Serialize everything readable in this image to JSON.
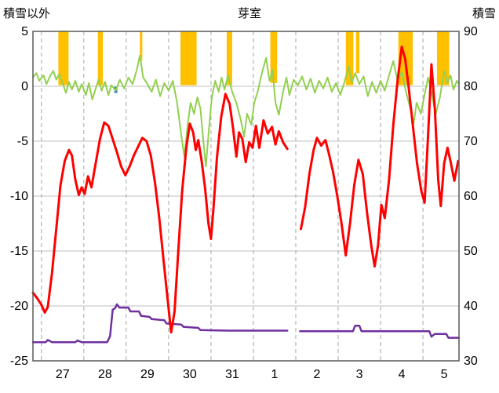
{
  "titles": {
    "left_axis_title": "積雪以外",
    "station_title": "芽室",
    "right_axis_title": "積雪"
  },
  "chart_data": {
    "type": "line",
    "title": "芽室",
    "left_axis_label": "積雪以外",
    "right_axis_label": "積雪",
    "x_domain": [
      -0.2,
      9.85
    ],
    "left_ylim": [
      -25,
      5
    ],
    "right_ylim": [
      30,
      90
    ],
    "left_ticks": [
      5,
      0,
      -5,
      -10,
      -15,
      -20,
      -25
    ],
    "right_ticks": [
      90,
      80,
      70,
      60,
      50,
      40,
      30
    ],
    "day_labels": [
      "27",
      "28",
      "29",
      "30",
      "31",
      "1",
      "2",
      "3",
      "4",
      "5"
    ],
    "day_boundaries": [
      0,
      1,
      2,
      3,
      4,
      5,
      6,
      7,
      8,
      9
    ],
    "grid": {
      "horizontal": true,
      "vertical_dashed": true
    },
    "legend": "none",
    "colors": {
      "temperature": "#FF0000",
      "near_zero_series": "#92D050",
      "snow_depth": "#7030A0",
      "sunshine_bar": "#FFC000",
      "precip_marker": "#2E75B6",
      "grid_h": "#BFBFBF",
      "grid_v": "#A6A6A6",
      "border": "#595959",
      "text": "#000000"
    },
    "bars": [
      {
        "t0": 0.4,
        "t1": 0.64,
        "from": 5,
        "to": 0.1,
        "color": "#FFC000",
        "name": "sunshine-bar"
      },
      {
        "t0": 1.33,
        "t1": 1.45,
        "from": 5,
        "to": 0.1,
        "color": "#FFC000",
        "name": "sunshine-bar"
      },
      {
        "t0": 1.72,
        "t1": 1.79,
        "from": -0.05,
        "to": -0.6,
        "color": "#2E75B6",
        "name": "precip-marker"
      },
      {
        "t0": 2.32,
        "t1": 2.38,
        "from": 5,
        "to": 2.3,
        "color": "#FFC000",
        "name": "sunshine-bar"
      },
      {
        "t0": 3.28,
        "t1": 3.66,
        "from": 5,
        "to": 0.1,
        "color": "#FFC000",
        "name": "sunshine-bar"
      },
      {
        "t0": 4.37,
        "t1": 4.5,
        "from": 5,
        "to": 0.1,
        "color": "#FFC000",
        "name": "sunshine-bar"
      },
      {
        "t0": 5.4,
        "t1": 5.56,
        "from": 5,
        "to": 0.3,
        "color": "#FFC000",
        "name": "sunshine-bar"
      },
      {
        "t0": 7.18,
        "t1": 7.36,
        "from": 5,
        "to": 0.1,
        "color": "#FFC000",
        "name": "sunshine-bar"
      },
      {
        "t0": 7.42,
        "t1": 7.5,
        "from": 5,
        "to": 1.2,
        "color": "#FFC000",
        "name": "sunshine-bar"
      },
      {
        "t0": 8.42,
        "t1": 8.76,
        "from": 5,
        "to": 0.1,
        "color": "#FFC000",
        "name": "sunshine-bar"
      },
      {
        "t0": 9.33,
        "t1": 9.62,
        "from": 5,
        "to": 0.1,
        "color": "#FFC000",
        "name": "sunshine-bar"
      }
    ],
    "series": [
      {
        "name": "snow-depth",
        "axis": "right",
        "color": "#7030A0",
        "width": 2.5,
        "points": [
          [
            -0.2,
            33.4
          ],
          [
            0.1,
            33.4
          ],
          [
            0.15,
            33.8
          ],
          [
            0.25,
            33.4
          ],
          [
            0.8,
            33.4
          ],
          [
            0.85,
            33.7
          ],
          [
            0.95,
            33.4
          ],
          [
            1.55,
            33.4
          ],
          [
            1.62,
            34.5
          ],
          [
            1.68,
            39.3
          ],
          [
            1.74,
            39.6
          ],
          [
            1.78,
            40.3
          ],
          [
            1.84,
            39.7
          ],
          [
            2.05,
            39.7
          ],
          [
            2.1,
            39.0
          ],
          [
            2.3,
            39.0
          ],
          [
            2.35,
            38.2
          ],
          [
            2.55,
            38.0
          ],
          [
            2.6,
            37.6
          ],
          [
            2.9,
            37.4
          ],
          [
            2.95,
            36.8
          ],
          [
            3.3,
            36.6
          ],
          [
            3.35,
            36.2
          ],
          [
            3.7,
            36.0
          ],
          [
            3.75,
            35.6
          ],
          [
            4.4,
            35.5
          ],
          [
            5.8,
            35.5
          ],
          null,
          [
            6.1,
            35.4
          ],
          [
            7.35,
            35.4
          ],
          [
            7.4,
            36.4
          ],
          [
            7.5,
            36.4
          ],
          [
            7.55,
            35.4
          ],
          [
            8.3,
            35.4
          ],
          [
            9.15,
            35.4
          ],
          [
            9.2,
            34.4
          ],
          [
            9.28,
            34.9
          ],
          [
            9.55,
            34.9
          ],
          [
            9.6,
            34.2
          ],
          [
            9.85,
            34.2
          ]
        ]
      },
      {
        "name": "near-zero",
        "axis": "left",
        "color": "#92D050",
        "width": 2,
        "points": [
          [
            -0.2,
            0.8
          ],
          [
            -0.12,
            1.2
          ],
          [
            -0.05,
            0.5
          ],
          [
            0.05,
            1.0
          ],
          [
            0.12,
            0.2
          ],
          [
            0.2,
            0.9
          ],
          [
            0.28,
            1.4
          ],
          [
            0.35,
            0.6
          ],
          [
            0.42,
            1.1
          ],
          [
            0.5,
            0.3
          ],
          [
            0.58,
            -0.6
          ],
          [
            0.65,
            0.4
          ],
          [
            0.72,
            -0.3
          ],
          [
            0.8,
            0.5
          ],
          [
            0.88,
            -0.5
          ],
          [
            0.95,
            0.2
          ],
          [
            1.05,
            -0.8
          ],
          [
            1.12,
            0.3
          ],
          [
            1.2,
            -1.2
          ],
          [
            1.28,
            -0.2
          ],
          [
            1.35,
            0.6
          ],
          [
            1.42,
            -0.4
          ],
          [
            1.5,
            0.4
          ],
          [
            1.58,
            -0.8
          ],
          [
            1.65,
            0.1
          ],
          [
            1.75,
            -0.4
          ],
          [
            1.85,
            0.6
          ],
          [
            1.95,
            -0.2
          ],
          [
            2.05,
            0.8
          ],
          [
            2.15,
            0.2
          ],
          [
            2.25,
            1.5
          ],
          [
            2.32,
            2.8
          ],
          [
            2.4,
            0.8
          ],
          [
            2.5,
            0.2
          ],
          [
            2.6,
            -0.5
          ],
          [
            2.7,
            0.6
          ],
          [
            2.8,
            -0.9
          ],
          [
            2.9,
            0.3
          ],
          [
            3.0,
            -0.4
          ],
          [
            3.1,
            0.5
          ],
          [
            3.2,
            -1.5
          ],
          [
            3.3,
            -4.5
          ],
          [
            3.37,
            -6.4
          ],
          [
            3.45,
            -3.5
          ],
          [
            3.52,
            -1.5
          ],
          [
            3.6,
            -2.5
          ],
          [
            3.68,
            -1.0
          ],
          [
            3.75,
            -2.0
          ],
          [
            3.82,
            -5.0
          ],
          [
            3.88,
            -7.3
          ],
          [
            3.95,
            -4.0
          ],
          [
            4.02,
            -1.0
          ],
          [
            4.1,
            0.5
          ],
          [
            4.18,
            -0.5
          ],
          [
            4.25,
            0.8
          ],
          [
            4.32,
            -0.3
          ],
          [
            4.4,
            1.0
          ],
          [
            4.5,
            -0.5
          ],
          [
            4.6,
            -1.5
          ],
          [
            4.7,
            -3.0
          ],
          [
            4.78,
            -4.6
          ],
          [
            4.85,
            -2.5
          ],
          [
            4.95,
            -3.5
          ],
          [
            5.02,
            -1.5
          ],
          [
            5.1,
            -0.5
          ],
          [
            5.2,
            1.2
          ],
          [
            5.3,
            2.6
          ],
          [
            5.38,
            0.5
          ],
          [
            5.45,
            1.5
          ],
          [
            5.52,
            -1.5
          ],
          [
            5.6,
            -2.6
          ],
          [
            5.7,
            -0.5
          ],
          [
            5.78,
            0.8
          ],
          [
            5.85,
            -0.8
          ],
          [
            5.95,
            0.6
          ],
          [
            6.05,
            0.1
          ],
          [
            6.15,
            0.9
          ],
          [
            6.25,
            -0.3
          ],
          [
            6.35,
            0.7
          ],
          [
            6.45,
            -0.6
          ],
          [
            6.55,
            0.5
          ],
          [
            6.65,
            -0.2
          ],
          [
            6.75,
            0.8
          ],
          [
            6.85,
            -0.5
          ],
          [
            6.95,
            0.3
          ],
          [
            7.05,
            -0.8
          ],
          [
            7.15,
            0.4
          ],
          [
            7.25,
            1.8
          ],
          [
            7.32,
            0.3
          ],
          [
            7.4,
            1.2
          ],
          [
            7.5,
            0.2
          ],
          [
            7.6,
            0.9
          ],
          [
            7.7,
            -0.9
          ],
          [
            7.8,
            0.4
          ],
          [
            7.9,
            -0.6
          ],
          [
            8.0,
            0.5
          ],
          [
            8.1,
            -0.4
          ],
          [
            8.2,
            1.0
          ],
          [
            8.3,
            2.3
          ],
          [
            8.4,
            0.5
          ],
          [
            8.5,
            1.3
          ],
          [
            8.6,
            -0.5
          ],
          [
            8.7,
            -2.0
          ],
          [
            8.78,
            -3.4
          ],
          [
            8.85,
            -1.5
          ],
          [
            8.95,
            -2.5
          ],
          [
            9.05,
            -0.5
          ],
          [
            9.12,
            0.8
          ],
          [
            9.2,
            -0.5
          ],
          [
            9.3,
            -2.6
          ],
          [
            9.4,
            -1.0
          ],
          [
            9.5,
            1.4
          ],
          [
            9.58,
            0.3
          ],
          [
            9.65,
            1.0
          ],
          [
            9.72,
            -0.3
          ],
          [
            9.8,
            0.5
          ],
          [
            9.85,
            0.2
          ]
        ]
      },
      {
        "name": "temperature",
        "axis": "left",
        "color": "#FF0000",
        "width": 3,
        "points": [
          [
            -0.2,
            -18.8
          ],
          [
            -0.1,
            -19.3
          ],
          [
            0.0,
            -19.9
          ],
          [
            0.08,
            -20.6
          ],
          [
            0.15,
            -20.1
          ],
          [
            0.25,
            -17.0
          ],
          [
            0.35,
            -13.0
          ],
          [
            0.45,
            -9.0
          ],
          [
            0.55,
            -6.8
          ],
          [
            0.65,
            -5.8
          ],
          [
            0.72,
            -6.3
          ],
          [
            0.8,
            -8.5
          ],
          [
            0.88,
            -9.9
          ],
          [
            0.95,
            -9.2
          ],
          [
            1.02,
            -9.8
          ],
          [
            1.1,
            -8.2
          ],
          [
            1.18,
            -9.2
          ],
          [
            1.28,
            -7.0
          ],
          [
            1.38,
            -4.8
          ],
          [
            1.48,
            -3.3
          ],
          [
            1.58,
            -3.6
          ],
          [
            1.68,
            -4.8
          ],
          [
            1.78,
            -6.0
          ],
          [
            1.88,
            -7.3
          ],
          [
            1.98,
            -8.1
          ],
          [
            2.08,
            -7.3
          ],
          [
            2.18,
            -6.3
          ],
          [
            2.28,
            -5.5
          ],
          [
            2.38,
            -4.7
          ],
          [
            2.48,
            -5.0
          ],
          [
            2.58,
            -6.3
          ],
          [
            2.68,
            -8.8
          ],
          [
            2.78,
            -12.0
          ],
          [
            2.88,
            -15.8
          ],
          [
            2.98,
            -19.5
          ],
          [
            3.06,
            -22.4
          ],
          [
            3.14,
            -20.5
          ],
          [
            3.22,
            -15.5
          ],
          [
            3.32,
            -9.5
          ],
          [
            3.42,
            -5.5
          ],
          [
            3.5,
            -3.4
          ],
          [
            3.58,
            -4.2
          ],
          [
            3.64,
            -5.8
          ],
          [
            3.7,
            -4.9
          ],
          [
            3.78,
            -6.8
          ],
          [
            3.86,
            -9.3
          ],
          [
            3.94,
            -12.5
          ],
          [
            4.0,
            -13.9
          ],
          [
            4.06,
            -11.0
          ],
          [
            4.14,
            -6.5
          ],
          [
            4.24,
            -2.8
          ],
          [
            4.34,
            -0.7
          ],
          [
            4.44,
            -1.6
          ],
          [
            4.52,
            -3.8
          ],
          [
            4.6,
            -6.4
          ],
          [
            4.66,
            -4.2
          ],
          [
            4.74,
            -4.8
          ],
          [
            4.82,
            -6.9
          ],
          [
            4.9,
            -5.1
          ],
          [
            4.98,
            -5.6
          ],
          [
            5.06,
            -3.6
          ],
          [
            5.14,
            -5.6
          ],
          [
            5.24,
            -3.1
          ],
          [
            5.34,
            -4.3
          ],
          [
            5.44,
            -3.7
          ],
          [
            5.52,
            -5.3
          ],
          [
            5.6,
            -4.1
          ],
          [
            5.7,
            -5.1
          ],
          [
            5.8,
            -5.7
          ],
          null,
          [
            6.12,
            -13.0
          ],
          [
            6.22,
            -11.0
          ],
          [
            6.32,
            -8.0
          ],
          [
            6.42,
            -5.8
          ],
          [
            6.5,
            -4.7
          ],
          [
            6.6,
            -5.4
          ],
          [
            6.7,
            -4.9
          ],
          [
            6.78,
            -6.1
          ],
          [
            6.88,
            -7.8
          ],
          [
            6.98,
            -10.0
          ],
          [
            7.08,
            -12.5
          ],
          [
            7.18,
            -15.4
          ],
          [
            7.28,
            -12.5
          ],
          [
            7.38,
            -9.0
          ],
          [
            7.48,
            -6.7
          ],
          [
            7.58,
            -8.0
          ],
          [
            7.68,
            -11.5
          ],
          [
            7.78,
            -14.5
          ],
          [
            7.86,
            -16.4
          ],
          [
            7.94,
            -14.5
          ],
          [
            8.02,
            -10.8
          ],
          [
            8.1,
            -12.0
          ],
          [
            8.2,
            -8.5
          ],
          [
            8.3,
            -3.5
          ],
          [
            8.4,
            0.5
          ],
          [
            8.5,
            3.6
          ],
          [
            8.58,
            2.5
          ],
          [
            8.66,
            0.0
          ],
          [
            8.76,
            -3.5
          ],
          [
            8.86,
            -7.0
          ],
          [
            8.96,
            -9.5
          ],
          [
            9.04,
            -10.6
          ],
          [
            9.12,
            -4.5
          ],
          [
            9.2,
            2.0
          ],
          [
            9.28,
            -2.0
          ],
          [
            9.36,
            -8.5
          ],
          [
            9.42,
            -10.9
          ],
          [
            9.5,
            -7.0
          ],
          [
            9.58,
            -5.6
          ],
          [
            9.66,
            -7.0
          ],
          [
            9.74,
            -8.6
          ],
          [
            9.83,
            -6.8
          ]
        ]
      }
    ]
  }
}
